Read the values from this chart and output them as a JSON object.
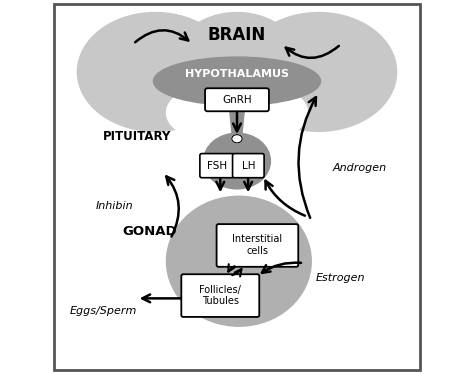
{
  "bg_color": "#ffffff",
  "brain_color": "#c8c8c8",
  "hypothalamus_color": "#909090",
  "pituitary_color": "#909090",
  "gonad_color": "#b0b0b0",
  "box_facecolor": "#e0e0e0",
  "box_edge": "#000000",
  "brain_label": "BRAIN",
  "hypothalamus_label": "HYPOTHALAMUS",
  "gnrh_label": "GnRH",
  "pituitary_label": "PITUITARY",
  "fsh_label": "FSH",
  "lh_label": "LH",
  "gonad_label": "GONAD",
  "interstitial_label": "Interstitial\ncells",
  "follicles_label": "Follicles/\nTubules",
  "inhibin_label": "Inhibin",
  "androgen_label": "Androgen",
  "estrogen_label": "Estrogen",
  "eggs_label": "Eggs/Sperm",
  "arrow_color": "#000000",
  "text_color": "#000000",
  "border_color": "#555555"
}
